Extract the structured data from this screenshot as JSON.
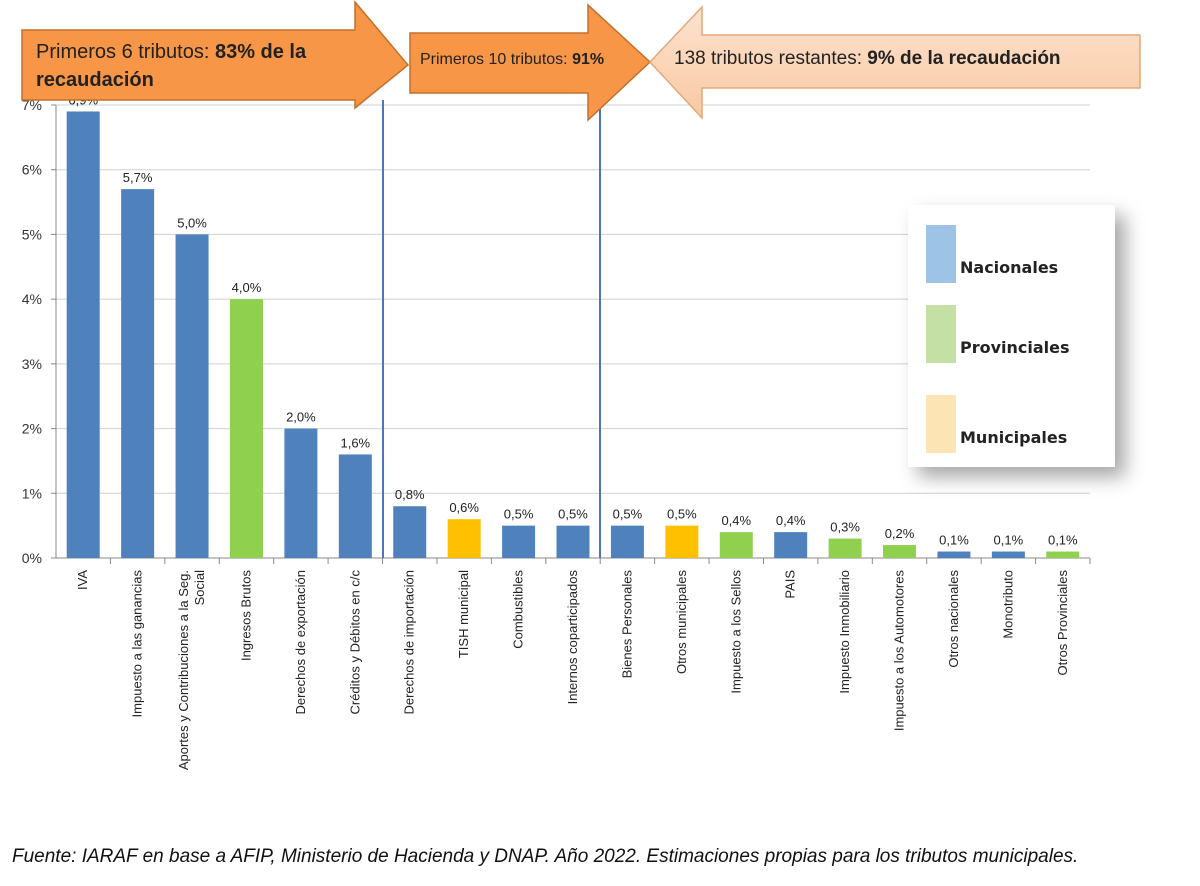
{
  "chart_data": {
    "type": "bar",
    "categories": [
      "IVA",
      "Impuesto a las ganancias",
      "Aportes y Contribuciones a la Seg. Social",
      "Ingresos Brutos",
      "Derechos de exportación",
      "Créditos y Débitos en c/c",
      "Derechos de importación",
      "TISH municipal",
      "Combustibles",
      "Internos coparticipados",
      "Bienes Personales",
      "Otros municipales",
      "Impuesto a los Sellos",
      "PAIS",
      "Impuesto Inmobiliario",
      "Impuesto a los Automotores",
      "Otros nacionales",
      "Monotributo",
      "Otros Provinciales"
    ],
    "values": [
      6.9,
      5.7,
      5.0,
      4.0,
      2.0,
      1.6,
      0.8,
      0.6,
      0.5,
      0.5,
      0.5,
      0.5,
      0.4,
      0.4,
      0.3,
      0.2,
      0.1,
      0.1,
      0.1
    ],
    "data_labels": [
      "6,9%",
      "5,7%",
      "5,0%",
      "4,0%",
      "2,0%",
      "1,6%",
      "0,8%",
      "0,6%",
      "0,5%",
      "0,5%",
      "0,5%",
      "0,5%",
      "0,4%",
      "0,4%",
      "0,3%",
      "0,2%",
      "0,1%",
      "0,1%",
      "0,1%"
    ],
    "groups": [
      "Nacionales",
      "Nacionales",
      "Nacionales",
      "Provinciales",
      "Nacionales",
      "Nacionales",
      "Nacionales",
      "Municipales",
      "Nacionales",
      "Nacionales",
      "Nacionales",
      "Municipales",
      "Provinciales",
      "Nacionales",
      "Provinciales",
      "Provinciales",
      "Nacionales",
      "Nacionales",
      "Provinciales"
    ],
    "y_ticks": [
      "0%",
      "1%",
      "2%",
      "3%",
      "4%",
      "5%",
      "6%",
      "7%"
    ],
    "ylim": [
      0,
      7
    ],
    "grid": true,
    "legend_position": "right",
    "legend": [
      {
        "name": "Nacionales",
        "color": "#9dc3e6"
      },
      {
        "name": "Provinciales",
        "color": "#c5e0a5"
      },
      {
        "name": "Municipales",
        "color": "#fde4b4"
      }
    ],
    "colors": {
      "Nacionales": "#4f81bd",
      "Provinciales": "#8fd14f",
      "Municipales": "#ffc000"
    }
  },
  "annotations": {
    "arrow1": {
      "normal": "Primeros 6 tributos: ",
      "bold": "83% de la",
      "line2": "recaudación"
    },
    "arrow2": {
      "normal": "Primeros 10 tributos: ",
      "bold": "91%"
    },
    "arrow3": {
      "normal": "138 tributos restantes: ",
      "bold": "9% de la recaudación"
    }
  },
  "source": "Fuente: IARAF en base a AFIP, Ministerio de Hacienda y DNAP. Año 2022. Estimaciones propias para los tributos municipales."
}
